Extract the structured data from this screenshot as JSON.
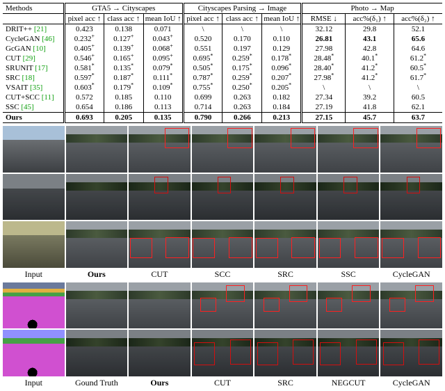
{
  "table": {
    "col_widths": [
      "14%",
      "9%",
      "9%",
      "9%",
      "9%",
      "9%",
      "9%",
      "10%",
      "11%",
      "11%"
    ],
    "groups": [
      {
        "label": "Methods",
        "span": 1
      },
      {
        "label": "GTA5 → Cityscapes",
        "span": 3
      },
      {
        "label": "Cityscapes Parsing → Image",
        "span": 3
      },
      {
        "label": "Photo → Map",
        "span": 3
      }
    ],
    "subheaders": [
      "",
      "pixel acc ↑",
      "class acc ↑",
      "mean IoU ↑",
      "pixel acc ↑",
      "class acc ↑",
      "mean IoU ↑",
      "RMSE ↓",
      "acc%(δ₁) ↑",
      "acc%(δ₂) ↑"
    ],
    "rows": [
      {
        "m": "DRIT++",
        "cite": "[21]",
        "v": [
          "0.423",
          "0.138",
          "0.071",
          "\\",
          "\\",
          "\\",
          "32.12",
          "29.8",
          "52.1"
        ]
      },
      {
        "m": "CycleGAN",
        "cite": "[46]",
        "v": [
          "0.232⁺",
          "0.127⁺",
          "0.043⁺",
          "0.520",
          "0.170",
          "0.110",
          "26.81",
          "43.1",
          "65.6"
        ],
        "bold": [
          7,
          9
        ]
      },
      {
        "m": "GcGAN",
        "cite": "[10]",
        "v": [
          "0.405⁺",
          "0.139⁺",
          "0.068⁺",
          "0.551",
          "0.197",
          "0.129",
          "27.98",
          "42.8",
          "64.6"
        ]
      },
      {
        "m": "CUT",
        "cite": "[29]",
        "v": [
          "0.546⁺",
          "0.165⁺",
          "0.095⁺",
          "0.695*",
          "0.259*",
          "0.178*",
          "28.48*",
          "40.1*",
          "61.2*"
        ]
      },
      {
        "m": "SRUNIT",
        "cite": "[17]",
        "v": [
          "0.581*",
          "0.135*",
          "0.079*",
          "0.505*",
          "0.175*",
          "0.096*",
          "28.40*",
          "41.2*",
          "60.5*"
        ]
      },
      {
        "m": "SRC",
        "cite": "[18]",
        "v": [
          "0.597*",
          "0.187*",
          "0.111*",
          "0.787*",
          "0.259*",
          "0.207*",
          "27.98*",
          "41.2*",
          "61.7*"
        ]
      },
      {
        "m": "VSAIT",
        "cite": "[35]",
        "v": [
          "0.603*",
          "0.179*",
          "0.109*",
          "0.755*",
          "0.250*",
          "0.205*",
          "\\",
          "\\",
          "\\"
        ]
      },
      {
        "m": "CUT+SCC",
        "cite": "[11]",
        "v": [
          "0.572",
          "0.185",
          "0.110",
          "0.699",
          "0.263",
          "0.182",
          "27.34",
          "39.2",
          "60.5"
        ]
      },
      {
        "m": "SSC",
        "cite": "[45]",
        "v": [
          "0.654",
          "0.186",
          "0.113",
          "0.714",
          "0.263",
          "0.184",
          "27.19",
          "41.8",
          "62.1"
        ]
      },
      {
        "m": "Ours",
        "cite": "",
        "v": [
          "0.693",
          "0.205",
          "0.135",
          "0.790",
          "0.266",
          "0.213",
          "27.15",
          "45.7",
          "63.7"
        ],
        "bold": [
          0,
          1,
          2,
          3,
          4,
          5,
          6,
          8
        ],
        "mbold": true
      }
    ]
  },
  "labels1": [
    "Input",
    "Ours",
    "CUT",
    "SCC",
    "SRC",
    "SSC",
    "CycleGAN"
  ],
  "labels1_bold": [
    1
  ],
  "labels2": [
    "Input",
    "Gound Truth",
    "Ours",
    "CUT",
    "SRC",
    "NEGCUT",
    "CycleGAN"
  ],
  "labels2_bold": [
    2
  ],
  "redbox_color": "#ff2020",
  "palette": {
    "cite": "#10a010",
    "sky": "#a8c0d8",
    "road": "#3f4246",
    "tree": "#3d4a34",
    "seg_road": "#d050d0",
    "seg_veg": "#46a046",
    "seg_sky": "#9090ff"
  }
}
